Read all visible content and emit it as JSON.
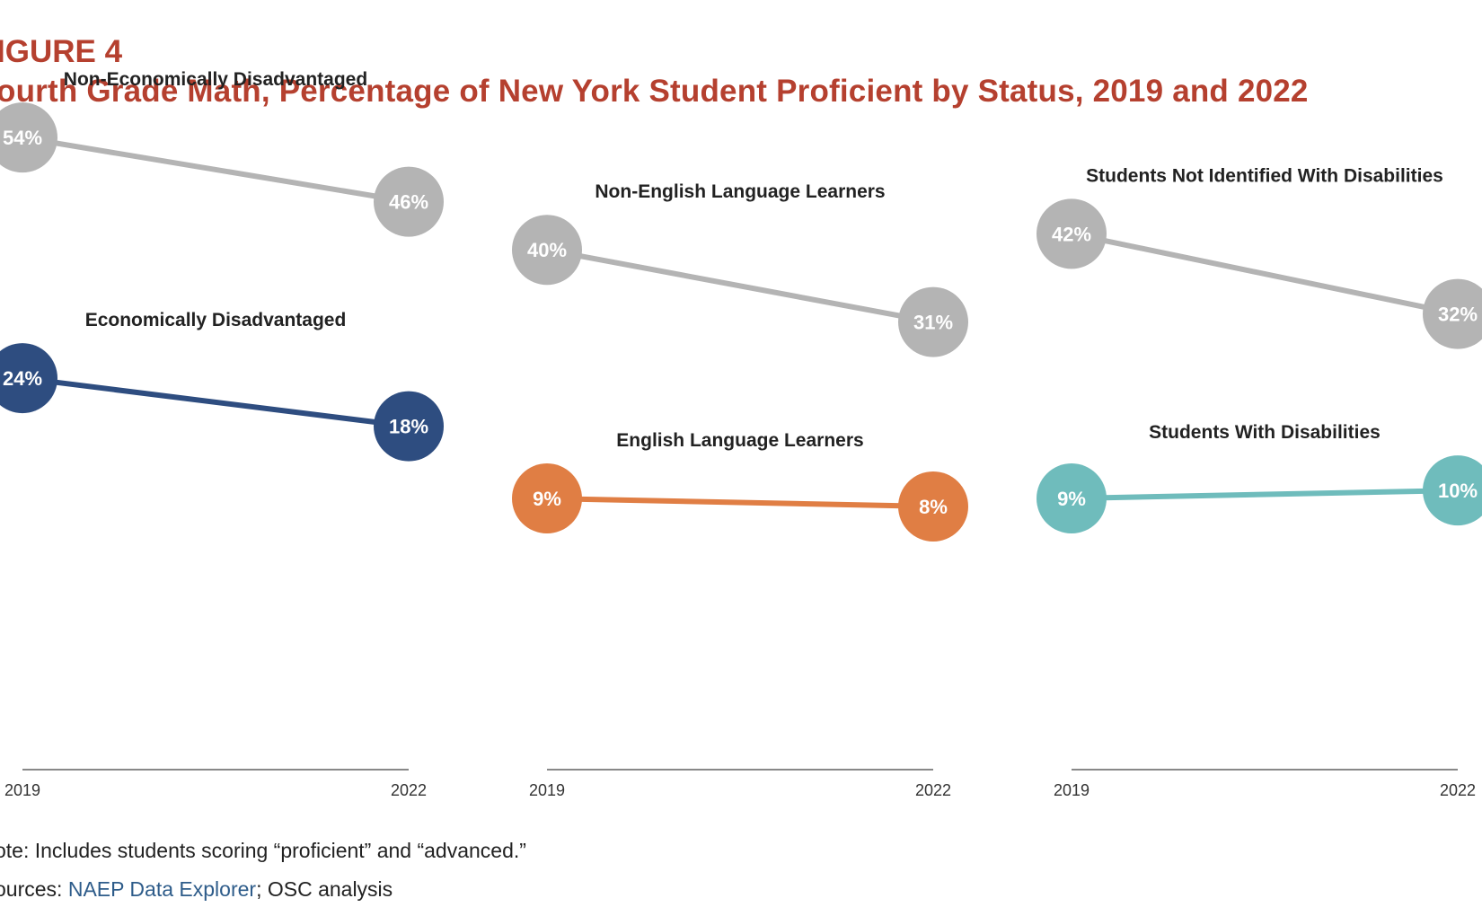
{
  "figure": {
    "label": "IGURE 4",
    "title": "ourth Grade Math, Percentage of New York Student Proficient by Status, 2019 and 2022"
  },
  "chart_data": {
    "type": "line",
    "x": [
      "2019",
      "2022"
    ],
    "panels": [
      {
        "series": [
          {
            "name": "Non-Economically Disadvantaged",
            "values": [
              54,
              46
            ],
            "labels": [
              "54%",
              "46%"
            ],
            "color": "#b4b4b4"
          },
          {
            "name": "Economically Disadvantaged",
            "values": [
              24,
              18
            ],
            "labels": [
              "24%",
              "18%"
            ],
            "color": "#2e4d80"
          }
        ]
      },
      {
        "series": [
          {
            "name": "Non-English Language Learners",
            "values": [
              40,
              31
            ],
            "labels": [
              "40%",
              "31%"
            ],
            "color": "#b4b4b4"
          },
          {
            "name": "English Language Learners",
            "values": [
              9,
              8
            ],
            "labels": [
              "9%",
              "8%"
            ],
            "color": "#e07e44"
          }
        ]
      },
      {
        "series": [
          {
            "name": "Students Not Identified With Disabilities",
            "values": [
              42,
              32
            ],
            "labels": [
              "42%",
              "32%"
            ],
            "color": "#b4b4b4"
          },
          {
            "name": "Students With Disabilities",
            "values": [
              9,
              10
            ],
            "labels": [
              "9%",
              "10%"
            ],
            "color": "#6fbcbc"
          }
        ]
      }
    ]
  },
  "footer": {
    "note": "ote: Includes students scoring “proficient” and “advanced.”",
    "sources_prefix": "ources: ",
    "sources_link": "NAEP Data Explorer",
    "sources_suffix": "; OSC analysis"
  }
}
